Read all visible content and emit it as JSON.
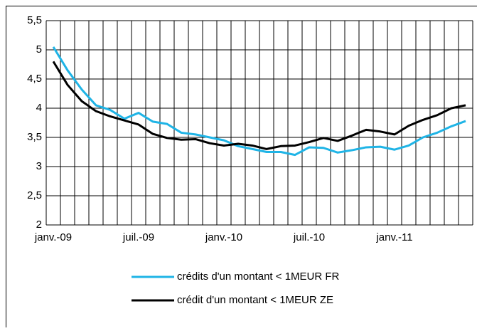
{
  "chart_data": {
    "type": "line",
    "categories": [
      "janv.-09",
      null,
      null,
      null,
      null,
      null,
      "juil.-09",
      null,
      null,
      null,
      null,
      null,
      "janv.-10",
      null,
      null,
      null,
      null,
      null,
      "juil.-10",
      null,
      null,
      null,
      null,
      null,
      "janv.-11",
      null,
      null,
      null,
      null,
      null
    ],
    "series": [
      {
        "name": "crédits d'un montant < 1MEUR FR",
        "color": "#1fb4e6",
        "values": [
          5.05,
          4.65,
          4.32,
          4.05,
          3.97,
          3.82,
          3.92,
          3.77,
          3.73,
          3.58,
          3.55,
          3.5,
          3.45,
          3.35,
          3.3,
          3.25,
          3.25,
          3.2,
          3.33,
          3.32,
          3.24,
          3.28,
          3.33,
          3.34,
          3.29,
          3.36,
          3.5,
          3.58,
          3.69,
          3.78
        ]
      },
      {
        "name": "crédit d'un montant < 1MEUR ZE",
        "color": "#000000",
        "values": [
          4.8,
          4.4,
          4.12,
          3.95,
          3.86,
          3.79,
          3.72,
          3.56,
          3.49,
          3.46,
          3.47,
          3.4,
          3.36,
          3.39,
          3.36,
          3.3,
          3.35,
          3.36,
          3.42,
          3.49,
          3.44,
          3.53,
          3.63,
          3.6,
          3.55,
          3.7,
          3.8,
          3.88,
          4.0,
          4.05
        ]
      }
    ],
    "ylim": [
      2,
      5.5
    ],
    "yticks": [
      2,
      {
        "value": 2.5,
        "label": "2,5"
      },
      3,
      {
        "value": 3.5,
        "label": "3,5"
      },
      4,
      {
        "value": 4.5,
        "label": "4,5"
      },
      5,
      {
        "value": 5.5,
        "label": "5,5"
      }
    ],
    "grid": true
  }
}
